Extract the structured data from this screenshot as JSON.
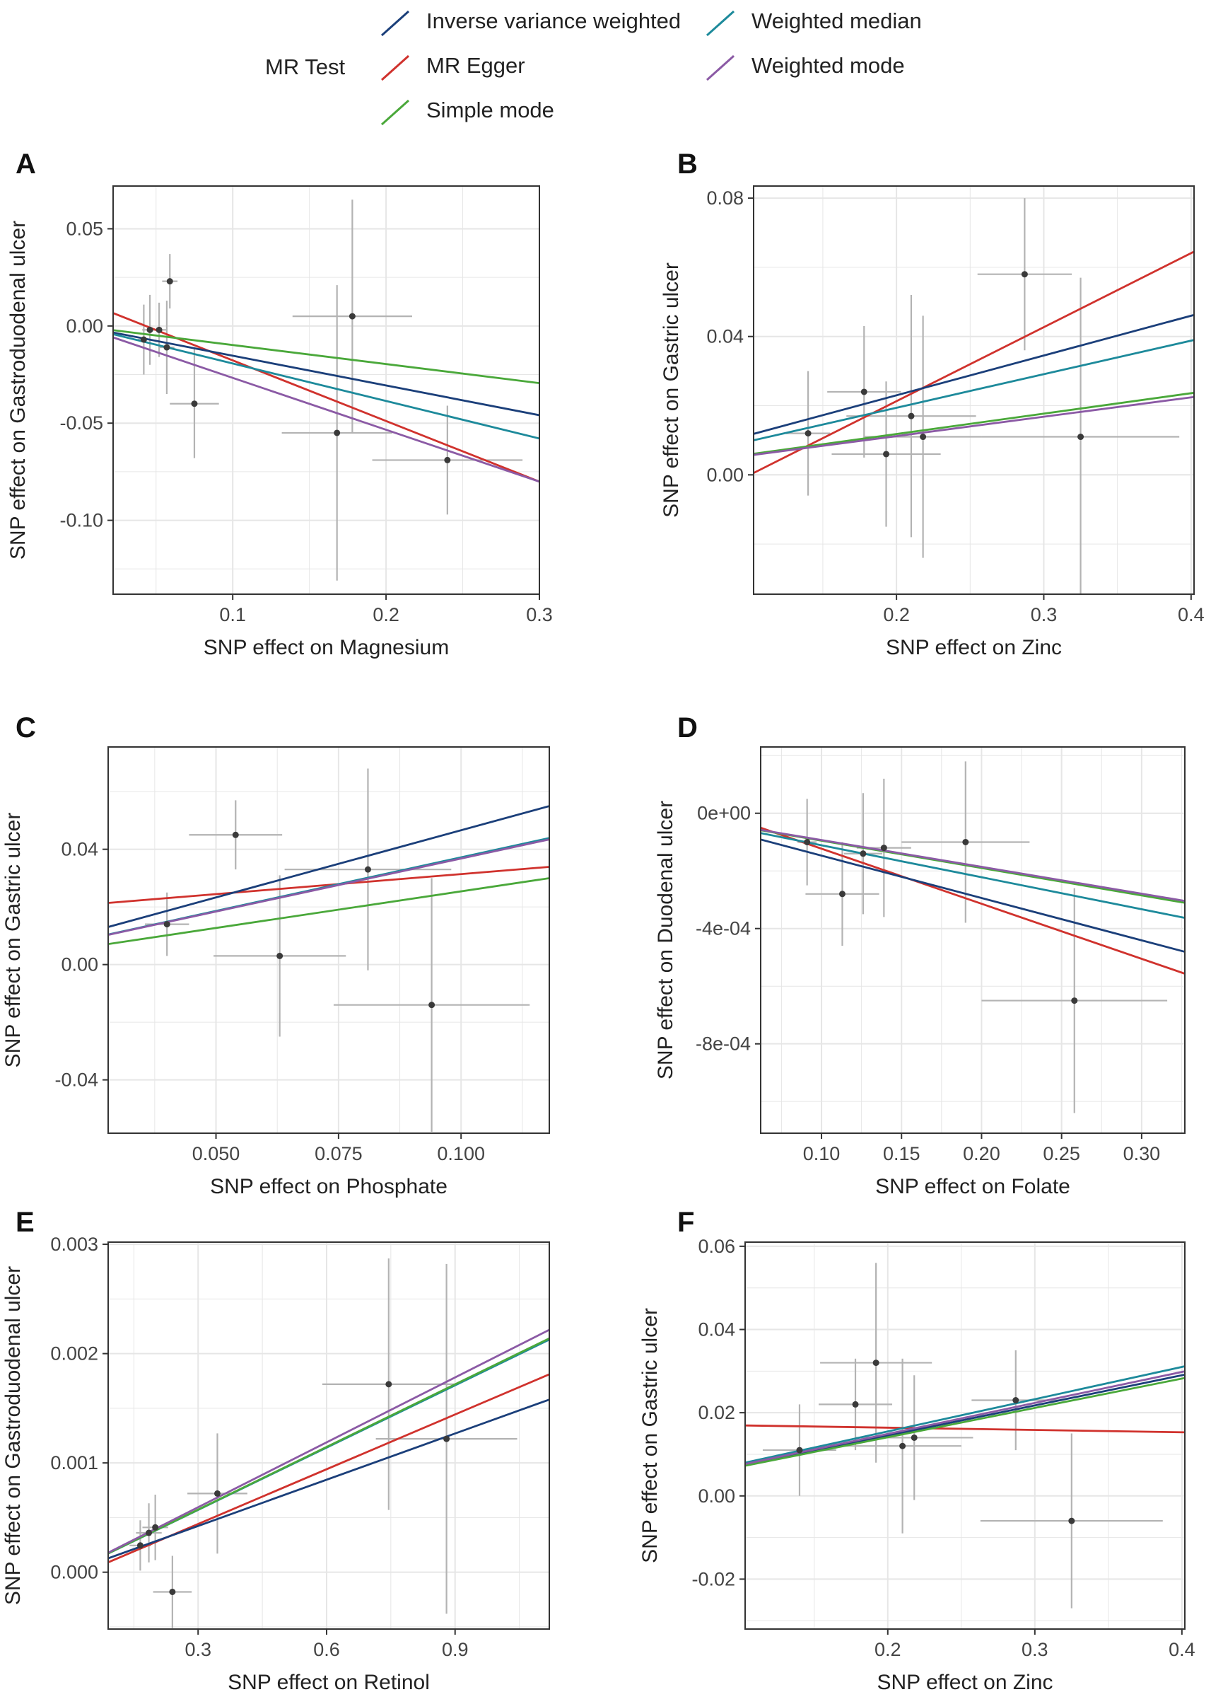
{
  "legend": {
    "title": "MR Test",
    "entries": [
      {
        "method": "ivw",
        "label": "Inverse variance weighted",
        "color": "#1b3f7a"
      },
      {
        "method": "egger",
        "label": "MR Egger",
        "color": "#d0322d"
      },
      {
        "method": "simple",
        "label": "Simple mode",
        "color": "#4aa83a"
      },
      {
        "method": "wmedian",
        "label": "Weighted median",
        "color": "#1d8a9b"
      },
      {
        "method": "wmode",
        "label": "Weighted mode",
        "color": "#8b5aa5"
      }
    ]
  },
  "chart_data": [
    {
      "id": "A",
      "type": "scatter",
      "xlabel": "SNP effect on Magnesium",
      "ylabel": "SNP effect on Gastroduodenal ulcer",
      "xlim": [
        0.022,
        0.3
      ],
      "ylim": [
        -0.138,
        0.072
      ],
      "xticks": [
        {
          "v": 0.1,
          "label": "0.1"
        },
        {
          "v": 0.2,
          "label": "0.2"
        },
        {
          "v": 0.3,
          "label": "0.3"
        }
      ],
      "yticks": [
        {
          "v": -0.1,
          "label": "-0.10"
        },
        {
          "v": -0.05,
          "label": "-0.05"
        },
        {
          "v": 0.0,
          "label": "0.00"
        },
        {
          "v": 0.05,
          "label": "0.05"
        }
      ],
      "points": [
        {
          "x": 0.042,
          "y": -0.007,
          "xerr": 0.004,
          "yerr": 0.018
        },
        {
          "x": 0.046,
          "y": -0.002,
          "xerr": 0.005,
          "yerr": 0.018
        },
        {
          "x": 0.052,
          "y": -0.002,
          "xerr": 0.005,
          "yerr": 0.014
        },
        {
          "x": 0.057,
          "y": -0.011,
          "xerr": 0.005,
          "yerr": 0.024
        },
        {
          "x": 0.059,
          "y": 0.023,
          "xerr": 0.005,
          "yerr": 0.014
        },
        {
          "x": 0.075,
          "y": -0.04,
          "xerr": 0.016,
          "yerr": 0.028
        },
        {
          "x": 0.168,
          "y": -0.055,
          "xerr": 0.036,
          "yerr": 0.076
        },
        {
          "x": 0.178,
          "y": 0.005,
          "xerr": 0.039,
          "yerr": 0.06
        },
        {
          "x": 0.24,
          "y": -0.069,
          "xerr": 0.049,
          "yerr": 0.028
        }
      ],
      "lines": [
        {
          "method": "ivw",
          "intercept": 0.0,
          "slope": -0.153
        },
        {
          "method": "egger",
          "intercept": 0.0135,
          "slope": -0.312
        },
        {
          "method": "simple",
          "intercept": 0.0,
          "slope": -0.098
        },
        {
          "method": "wmedian",
          "intercept": 0.0,
          "slope": -0.193
        },
        {
          "method": "wmode",
          "intercept": 0.0,
          "slope": -0.267
        }
      ]
    },
    {
      "id": "B",
      "type": "scatter",
      "xlabel": "SNP effect on Zinc",
      "ylabel": "SNP effect on Gastric ulcer",
      "xlim": [
        0.103,
        0.402
      ],
      "ylim": [
        -0.0345,
        0.0835
      ],
      "xticks": [
        {
          "v": 0.2,
          "label": "0.2"
        },
        {
          "v": 0.3,
          "label": "0.3"
        },
        {
          "v": 0.4,
          "label": "0.4"
        }
      ],
      "yticks": [
        {
          "v": 0.0,
          "label": "0.00"
        },
        {
          "v": 0.04,
          "label": "0.04"
        },
        {
          "v": 0.08,
          "label": "0.08"
        }
      ],
      "points": [
        {
          "x": 0.14,
          "y": 0.012,
          "xerr": 0.015,
          "yerr": 0.018
        },
        {
          "x": 0.178,
          "y": 0.024,
          "xerr": 0.025,
          "yerr": 0.019
        },
        {
          "x": 0.193,
          "y": 0.006,
          "xerr": 0.037,
          "yerr": 0.021
        },
        {
          "x": 0.21,
          "y": 0.017,
          "xerr": 0.044,
          "yerr": 0.035
        },
        {
          "x": 0.218,
          "y": 0.011,
          "xerr": 0.04,
          "yerr": 0.035
        },
        {
          "x": 0.287,
          "y": 0.058,
          "xerr": 0.032,
          "yerr": 0.022
        },
        {
          "x": 0.325,
          "y": 0.011,
          "xerr": 0.067,
          "yerr": 0.046
        }
      ],
      "lines": [
        {
          "method": "ivw",
          "intercept": 0.0,
          "slope": 0.115
        },
        {
          "method": "egger",
          "intercept": -0.0215,
          "slope": 0.214
        },
        {
          "method": "simple",
          "intercept": 0.0,
          "slope": 0.059
        },
        {
          "method": "wmedian",
          "intercept": 0.0,
          "slope": 0.097
        },
        {
          "method": "wmode",
          "intercept": 0.0,
          "slope": 0.056
        }
      ]
    },
    {
      "id": "C",
      "type": "scatter",
      "xlabel": "SNP effect on Phosphate",
      "ylabel": "SNP effect on Gastric ulcer",
      "xlim": [
        0.028,
        0.118
      ],
      "ylim": [
        -0.0585,
        0.0755
      ],
      "xticks": [
        {
          "v": 0.05,
          "label": "0.050"
        },
        {
          "v": 0.075,
          "label": "0.075"
        },
        {
          "v": 0.1,
          "label": "0.100"
        }
      ],
      "yticks": [
        {
          "v": -0.04,
          "label": "-0.04"
        },
        {
          "v": 0.0,
          "label": "0.00"
        },
        {
          "v": 0.04,
          "label": "0.04"
        }
      ],
      "points": [
        {
          "x": 0.04,
          "y": 0.014,
          "xerr": 0.0045,
          "yerr": 0.011
        },
        {
          "x": 0.054,
          "y": 0.045,
          "xerr": 0.0095,
          "yerr": 0.012
        },
        {
          "x": 0.063,
          "y": 0.003,
          "xerr": 0.0135,
          "yerr": 0.028
        },
        {
          "x": 0.081,
          "y": 0.033,
          "xerr": 0.017,
          "yerr": 0.035
        },
        {
          "x": 0.094,
          "y": -0.014,
          "xerr": 0.02,
          "yerr": 0.044
        }
      ],
      "lines": [
        {
          "method": "ivw",
          "intercept": 0.0,
          "slope": 0.466
        },
        {
          "method": "egger",
          "intercept": 0.0175,
          "slope": 0.139
        },
        {
          "method": "simple",
          "intercept": 0.0,
          "slope": 0.254
        },
        {
          "method": "wmedian",
          "intercept": 0.0,
          "slope": 0.372
        },
        {
          "method": "wmode",
          "intercept": 0.0,
          "slope": 0.368
        }
      ]
    },
    {
      "id": "D",
      "type": "scatter",
      "xlabel": "SNP effect on Folate",
      "ylabel": "SNP effect on Duodenal ulcer",
      "xlim": [
        0.062,
        0.327
      ],
      "ylim": [
        -0.00111,
        0.00023
      ],
      "xticks": [
        {
          "v": 0.1,
          "label": "0.10"
        },
        {
          "v": 0.15,
          "label": "0.15"
        },
        {
          "v": 0.2,
          "label": "0.20"
        },
        {
          "v": 0.25,
          "label": "0.25"
        },
        {
          "v": 0.3,
          "label": "0.30"
        }
      ],
      "yticks": [
        {
          "v": -0.0008,
          "label": "-8e-04"
        },
        {
          "v": -0.0004,
          "label": "-4e-04"
        },
        {
          "v": 0.0,
          "label": "0e+00"
        }
      ],
      "points": [
        {
          "x": 0.091,
          "y": -0.0001,
          "xerr": 0.006,
          "yerr": 0.00015
        },
        {
          "x": 0.113,
          "y": -0.00028,
          "xerr": 0.023,
          "yerr": 0.00018
        },
        {
          "x": 0.126,
          "y": -0.00014,
          "xerr": 0.012,
          "yerr": 0.00021
        },
        {
          "x": 0.139,
          "y": -0.00012,
          "xerr": 0.017,
          "yerr": 0.00024
        },
        {
          "x": 0.19,
          "y": -0.0001,
          "xerr": 0.04,
          "yerr": 0.00028
        },
        {
          "x": 0.258,
          "y": -0.00065,
          "xerr": 0.058,
          "yerr": 0.00039
        }
      ],
      "lines": [
        {
          "method": "ivw",
          "intercept": 0.0,
          "slope": -0.00147
        },
        {
          "method": "egger",
          "intercept": 6.8e-05,
          "slope": -0.00191
        },
        {
          "method": "simple",
          "intercept": 0.0,
          "slope": -0.00095
        },
        {
          "method": "wmedian",
          "intercept": 0.0,
          "slope": -0.00111
        },
        {
          "method": "wmode",
          "intercept": 0.0,
          "slope": -0.00093
        }
      ]
    },
    {
      "id": "E",
      "type": "scatter",
      "xlabel": "SNP effect on Retinol",
      "ylabel": "SNP effect on Gastroduodenal ulcer",
      "xlim": [
        0.09,
        1.12
      ],
      "ylim": [
        -0.00052,
        0.00302
      ],
      "xticks": [
        {
          "v": 0.3,
          "label": "0.3"
        },
        {
          "v": 0.6,
          "label": "0.6"
        },
        {
          "v": 0.9,
          "label": "0.9"
        }
      ],
      "yticks": [
        {
          "v": 0.0,
          "label": "0.000"
        },
        {
          "v": 0.001,
          "label": "0.001"
        },
        {
          "v": 0.002,
          "label": "0.002"
        },
        {
          "v": 0.003,
          "label": "0.003"
        }
      ],
      "points": [
        {
          "x": 0.165,
          "y": 0.000245,
          "xerr": 0.025,
          "yerr": 0.00023
        },
        {
          "x": 0.185,
          "y": 0.00036,
          "xerr": 0.03,
          "yerr": 0.00027
        },
        {
          "x": 0.2,
          "y": 0.00041,
          "xerr": 0.03,
          "yerr": 0.0003
        },
        {
          "x": 0.24,
          "y": -0.00018,
          "xerr": 0.045,
          "yerr": 0.00033
        },
        {
          "x": 0.345,
          "y": 0.00072,
          "xerr": 0.07,
          "yerr": 0.00055
        },
        {
          "x": 0.745,
          "y": 0.00172,
          "xerr": 0.155,
          "yerr": 0.00115
        },
        {
          "x": 0.88,
          "y": 0.00122,
          "xerr": 0.165,
          "yerr": 0.0016
        }
      ],
      "lines": [
        {
          "method": "ivw",
          "intercept": 0.0,
          "slope": 0.00141
        },
        {
          "method": "egger",
          "intercept": -6e-05,
          "slope": 0.00167
        },
        {
          "method": "simple",
          "intercept": 0.0,
          "slope": 0.00191
        },
        {
          "method": "wmedian",
          "intercept": 0.0,
          "slope": 0.0019
        },
        {
          "method": "wmode",
          "intercept": 0.0,
          "slope": 0.00198
        }
      ]
    },
    {
      "id": "F",
      "type": "scatter",
      "xlabel": "SNP effect on Zinc",
      "ylabel": "SNP effect on Gastric ulcer",
      "xlim": [
        0.103,
        0.402
      ],
      "ylim": [
        -0.032,
        0.061
      ],
      "xticks": [
        {
          "v": 0.2,
          "label": "0.2"
        },
        {
          "v": 0.3,
          "label": "0.3"
        },
        {
          "v": 0.4,
          "label": "0.4"
        }
      ],
      "yticks": [
        {
          "v": -0.02,
          "label": "-0.02"
        },
        {
          "v": 0.0,
          "label": "0.00"
        },
        {
          "v": 0.02,
          "label": "0.02"
        },
        {
          "v": 0.04,
          "label": "0.04"
        },
        {
          "v": 0.06,
          "label": "0.06"
        }
      ],
      "points": [
        {
          "x": 0.14,
          "y": 0.011,
          "xerr": 0.025,
          "yerr": 0.011
        },
        {
          "x": 0.178,
          "y": 0.022,
          "xerr": 0.025,
          "yerr": 0.011
        },
        {
          "x": 0.192,
          "y": 0.032,
          "xerr": 0.038,
          "yerr": 0.024
        },
        {
          "x": 0.21,
          "y": 0.012,
          "xerr": 0.04,
          "yerr": 0.021
        },
        {
          "x": 0.218,
          "y": 0.014,
          "xerr": 0.04,
          "yerr": 0.015
        },
        {
          "x": 0.287,
          "y": 0.023,
          "xerr": 0.03,
          "yerr": 0.012
        },
        {
          "x": 0.325,
          "y": -0.006,
          "xerr": 0.062,
          "yerr": 0.021
        }
      ],
      "lines": [
        {
          "method": "ivw",
          "intercept": 0.0,
          "slope": 0.0725
        },
        {
          "method": "egger",
          "intercept": 0.0175,
          "slope": -0.0055
        },
        {
          "method": "simple",
          "intercept": 0.0,
          "slope": 0.0705
        },
        {
          "method": "wmedian",
          "intercept": 0.0,
          "slope": 0.0775
        },
        {
          "method": "wmode",
          "intercept": 0.0,
          "slope": 0.0745
        }
      ]
    }
  ]
}
